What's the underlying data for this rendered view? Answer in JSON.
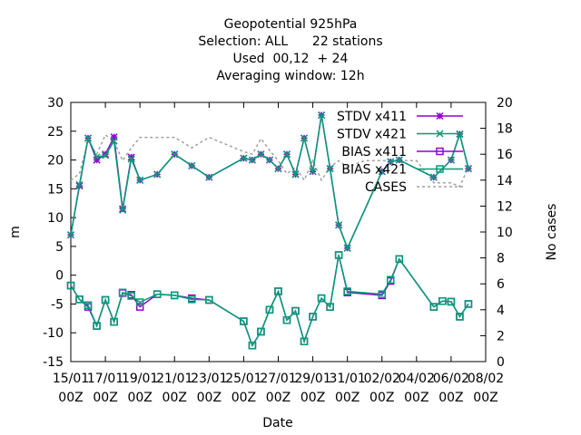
{
  "chart_data": {
    "type": "line",
    "title": [
      "Geopotential 925hPa",
      "Selection: ALL      22 stations",
      "Used  00,12  + 24",
      "Averaging window: 12h"
    ],
    "xlabel": "Date",
    "ylabel": "m",
    "y2label": "No cases",
    "xlim": [
      0,
      24
    ],
    "ylim": [
      -15,
      30
    ],
    "y2lim": [
      0,
      20
    ],
    "x_ticks": [
      {
        "x": 0,
        "line1": "15/01",
        "line2": "00Z"
      },
      {
        "x": 2,
        "line1": "17/01",
        "line2": "00Z"
      },
      {
        "x": 4,
        "line1": "19/01",
        "line2": "00Z"
      },
      {
        "x": 6,
        "line1": "21/01",
        "line2": "00Z"
      },
      {
        "x": 8,
        "line1": "23/01",
        "line2": "00Z"
      },
      {
        "x": 10,
        "line1": "25/01",
        "line2": "00Z"
      },
      {
        "x": 12,
        "line1": "27/01",
        "line2": "00Z"
      },
      {
        "x": 14,
        "line1": "29/01",
        "line2": "00Z"
      },
      {
        "x": 16,
        "line1": "31/01",
        "line2": "00Z"
      },
      {
        "x": 18,
        "line1": "02/02",
        "line2": "00Z"
      },
      {
        "x": 20,
        "line1": "04/02",
        "line2": "00Z"
      },
      {
        "x": 22,
        "line1": "06/02",
        "line2": "00Z"
      },
      {
        "x": 24,
        "line1": "08/02",
        "line2": "00Z"
      }
    ],
    "y_ticks": [
      -15,
      -10,
      -5,
      0,
      5,
      10,
      15,
      20,
      25,
      30
    ],
    "y2_ticks": [
      0,
      2,
      4,
      6,
      8,
      10,
      12,
      14,
      16,
      18,
      20
    ],
    "legend_position": "top-right",
    "series": [
      {
        "name": "STDV x411",
        "color": "#9400d3",
        "marker": "star",
        "axis": "y",
        "points": [
          [
            0,
            7
          ],
          [
            0.5,
            15.5
          ],
          [
            1,
            23.8
          ],
          [
            1.5,
            20
          ],
          [
            2,
            21
          ],
          [
            2.5,
            24
          ],
          [
            3,
            11.5
          ],
          [
            3.5,
            20.5
          ],
          [
            4,
            16.5
          ],
          [
            5,
            17.5
          ],
          [
            6,
            21
          ],
          [
            7,
            19
          ],
          [
            8,
            17
          ],
          [
            10,
            20.3
          ],
          [
            10.5,
            20
          ],
          [
            11,
            21
          ],
          [
            11.5,
            20
          ],
          [
            12,
            18.5
          ],
          [
            12.5,
            21
          ],
          [
            13,
            17.5
          ],
          [
            13.5,
            23.8
          ],
          [
            14,
            18
          ],
          [
            14.5,
            27.8
          ],
          [
            15,
            18.5
          ],
          [
            15.5,
            8.7
          ],
          [
            16,
            4.7
          ],
          [
            18,
            18
          ],
          [
            18.5,
            19.7
          ],
          [
            19,
            20
          ],
          [
            21,
            17
          ],
          [
            22,
            20
          ],
          [
            22.5,
            24.5
          ],
          [
            23,
            18.5
          ]
        ]
      },
      {
        "name": "STDV x421",
        "color": "#009e73",
        "marker": "x",
        "axis": "y",
        "points": [
          [
            0,
            7
          ],
          [
            0.5,
            15.7
          ],
          [
            1,
            23.8
          ],
          [
            1.5,
            20.5
          ],
          [
            2,
            20.8
          ],
          [
            2.5,
            23.3
          ],
          [
            3,
            11.3
          ],
          [
            3.5,
            20.2
          ],
          [
            4,
            16.5
          ],
          [
            5,
            17.5
          ],
          [
            6,
            21
          ],
          [
            7,
            19
          ],
          [
            8,
            17
          ],
          [
            10,
            20.3
          ],
          [
            10.5,
            20
          ],
          [
            11,
            21
          ],
          [
            11.5,
            20
          ],
          [
            12,
            18.5
          ],
          [
            12.5,
            21
          ],
          [
            13,
            17.5
          ],
          [
            13.5,
            23.8
          ],
          [
            14,
            18
          ],
          [
            14.5,
            27.8
          ],
          [
            15,
            18.5
          ],
          [
            15.5,
            8.7
          ],
          [
            16,
            4.7
          ],
          [
            18,
            18
          ],
          [
            18.5,
            19.7
          ],
          [
            19,
            20
          ],
          [
            21,
            17
          ],
          [
            22,
            20
          ],
          [
            22.5,
            24.5
          ],
          [
            23,
            18.5
          ]
        ]
      },
      {
        "name": "BIAS x411",
        "color": "#9400d3",
        "marker": "box",
        "axis": "y",
        "points": [
          [
            0,
            -1.8
          ],
          [
            0.5,
            -4.2
          ],
          [
            1,
            -5.5
          ],
          [
            1.5,
            -8.8
          ],
          [
            2,
            -4.3
          ],
          [
            2.5,
            -8.1
          ],
          [
            3,
            -3.1
          ],
          [
            3.5,
            -3.4
          ],
          [
            4,
            -5.5
          ],
          [
            5,
            -3.3
          ],
          [
            6,
            -3.5
          ],
          [
            7,
            -4
          ],
          [
            8,
            -4.3
          ],
          [
            10,
            -8
          ],
          [
            10.5,
            -12.2
          ],
          [
            11,
            -9.8
          ],
          [
            11.5,
            -6
          ],
          [
            12,
            -2.8
          ],
          [
            12.5,
            -7.8
          ],
          [
            13,
            -6.2
          ],
          [
            13.5,
            -11.5
          ],
          [
            14,
            -7.2
          ],
          [
            14.5,
            -4
          ],
          [
            15,
            -5.5
          ],
          [
            15.5,
            3.5
          ],
          [
            16,
            -3
          ],
          [
            18,
            -3.5
          ],
          [
            18.5,
            -1
          ],
          [
            19,
            2.8
          ],
          [
            21,
            -5.5
          ],
          [
            21.5,
            -4.5
          ],
          [
            22,
            -4.6
          ],
          [
            22.5,
            -7.2
          ],
          [
            23,
            -5
          ]
        ]
      },
      {
        "name": "BIAS x421",
        "color": "#009e73",
        "marker": "box",
        "axis": "y",
        "points": [
          [
            0,
            -1.8
          ],
          [
            0.5,
            -4.2
          ],
          [
            1,
            -5.2
          ],
          [
            1.5,
            -8.8
          ],
          [
            2,
            -4.3
          ],
          [
            2.5,
            -8.1
          ],
          [
            3,
            -3
          ],
          [
            3.5,
            -3.6
          ],
          [
            4,
            -4.7
          ],
          [
            5,
            -3.3
          ],
          [
            6,
            -3.5
          ],
          [
            7,
            -4.2
          ],
          [
            8,
            -4.3
          ],
          [
            10,
            -8
          ],
          [
            10.5,
            -12.2
          ],
          [
            11,
            -9.8
          ],
          [
            11.5,
            -6
          ],
          [
            12,
            -2.8
          ],
          [
            12.5,
            -7.8
          ],
          [
            13,
            -6.2
          ],
          [
            13.5,
            -11.5
          ],
          [
            14,
            -7.2
          ],
          [
            14.5,
            -4
          ],
          [
            15,
            -5.5
          ],
          [
            15.5,
            3.5
          ],
          [
            16,
            -2.8
          ],
          [
            18,
            -3.3
          ],
          [
            18.5,
            -0.8
          ],
          [
            19,
            2.8
          ],
          [
            21,
            -5.5
          ],
          [
            21.5,
            -4.5
          ],
          [
            22,
            -4.6
          ],
          [
            22.5,
            -7.2
          ],
          [
            23,
            -5
          ]
        ]
      },
      {
        "name": "CASES",
        "color": "#a0a0a0",
        "marker": "none",
        "axis": "y2",
        "dashed": true,
        "points": [
          [
            0,
            14
          ],
          [
            0.5,
            14.5
          ],
          [
            1,
            17
          ],
          [
            1.5,
            16
          ],
          [
            2,
            17.5
          ],
          [
            2.5,
            17
          ],
          [
            3,
            15.5
          ],
          [
            3.5,
            16.5
          ],
          [
            4,
            17.3
          ],
          [
            5,
            17.3
          ],
          [
            6,
            17.3
          ],
          [
            7,
            16.5
          ],
          [
            8,
            17.3
          ],
          [
            10,
            16.2
          ],
          [
            10.5,
            16
          ],
          [
            11,
            17.2
          ],
          [
            11.5,
            16.3
          ],
          [
            12,
            15.5
          ],
          [
            12.5,
            14.5
          ],
          [
            13,
            15
          ],
          [
            13.5,
            14
          ],
          [
            14,
            15.5
          ],
          [
            14.5,
            14
          ],
          [
            15,
            15
          ],
          [
            15.5,
            15.5
          ],
          [
            16,
            15
          ],
          [
            17,
            15.5
          ],
          [
            18,
            15.5
          ],
          [
            18.5,
            15.5
          ],
          [
            19,
            15.5
          ],
          [
            20,
            15.5
          ],
          [
            21,
            13.8
          ],
          [
            21.5,
            13.8
          ],
          [
            22,
            13.8
          ],
          [
            22.5,
            13.5
          ],
          [
            23,
            15
          ]
        ]
      }
    ]
  }
}
